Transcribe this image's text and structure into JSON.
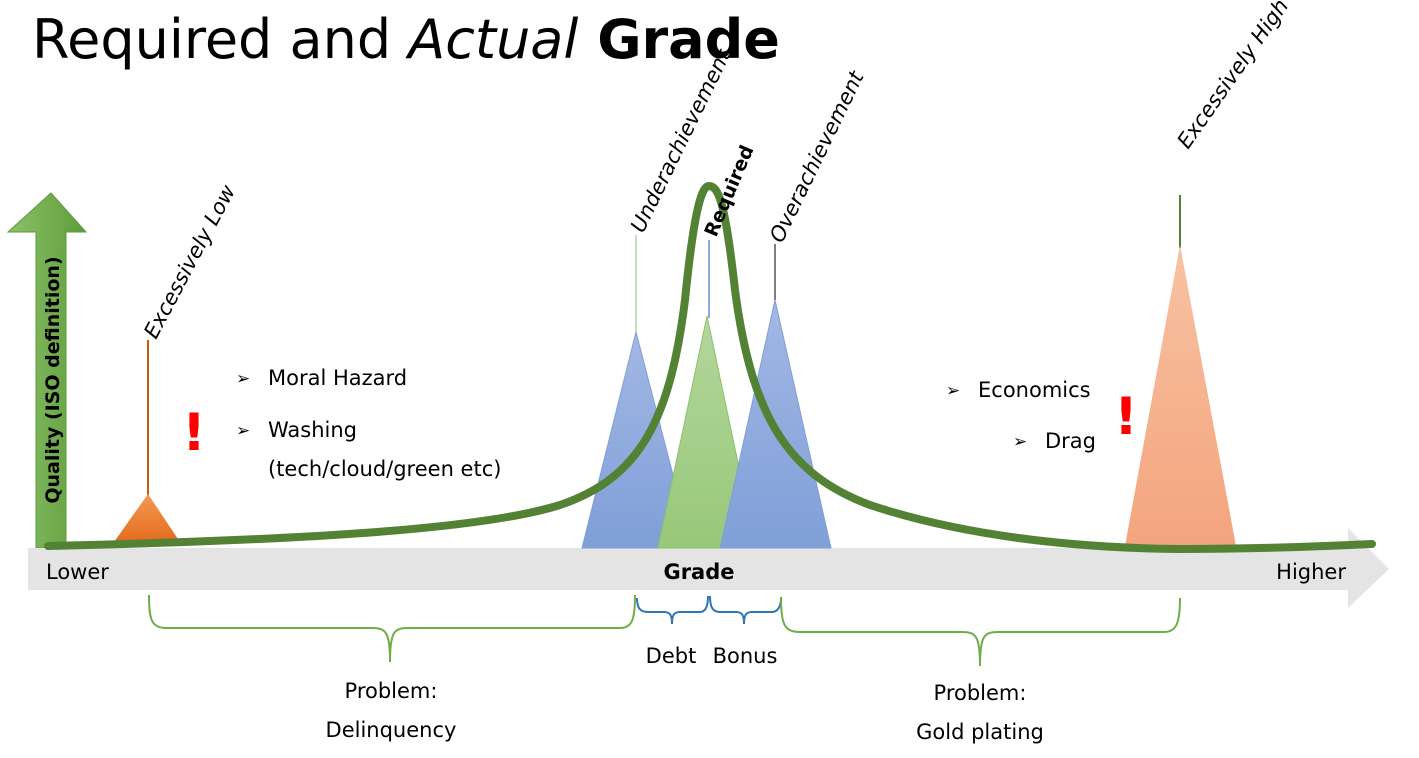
{
  "title": {
    "part1": "Required and ",
    "part2": "Actual",
    "part3": " Grade"
  },
  "y_axis_label": "Quality (ISO definition)",
  "x_axis": {
    "left_label": "Lower",
    "center_label": "Grade",
    "right_label": "Higher"
  },
  "markers": {
    "excessively_low": "Excessively Low",
    "underachievement": "Underachievement",
    "required": "Required",
    "overachievement": "Overachievement",
    "excessively_high": "Excessively High"
  },
  "left_bullets": {
    "item1": "Moral Hazard",
    "item2_line1": "Washing",
    "item2_line2": "(tech/cloud/green etc)"
  },
  "right_bullets": {
    "item1": "Economics",
    "item2": "Drag"
  },
  "warning_symbol": "!",
  "bullet_symbol": "➢",
  "braces": {
    "debt": "Debt",
    "bonus": "Bonus",
    "left_problem_line1": "Problem:",
    "left_problem_line2": "Delinquency",
    "right_problem_line1": "Problem:",
    "right_problem_line2": "Gold plating"
  },
  "colors": {
    "curve": "#548235",
    "axis_arrow": "#e7e6e6",
    "quality_arrow": "#70ad47",
    "triangle_blue": "#8faadc",
    "triangle_green": "#a9d18e",
    "triangle_low": "#ed7d31",
    "triangle_high": "#f4b183",
    "warning": "#ff0000",
    "brace_green": "#70ad47",
    "brace_blue": "#2e75b6"
  }
}
